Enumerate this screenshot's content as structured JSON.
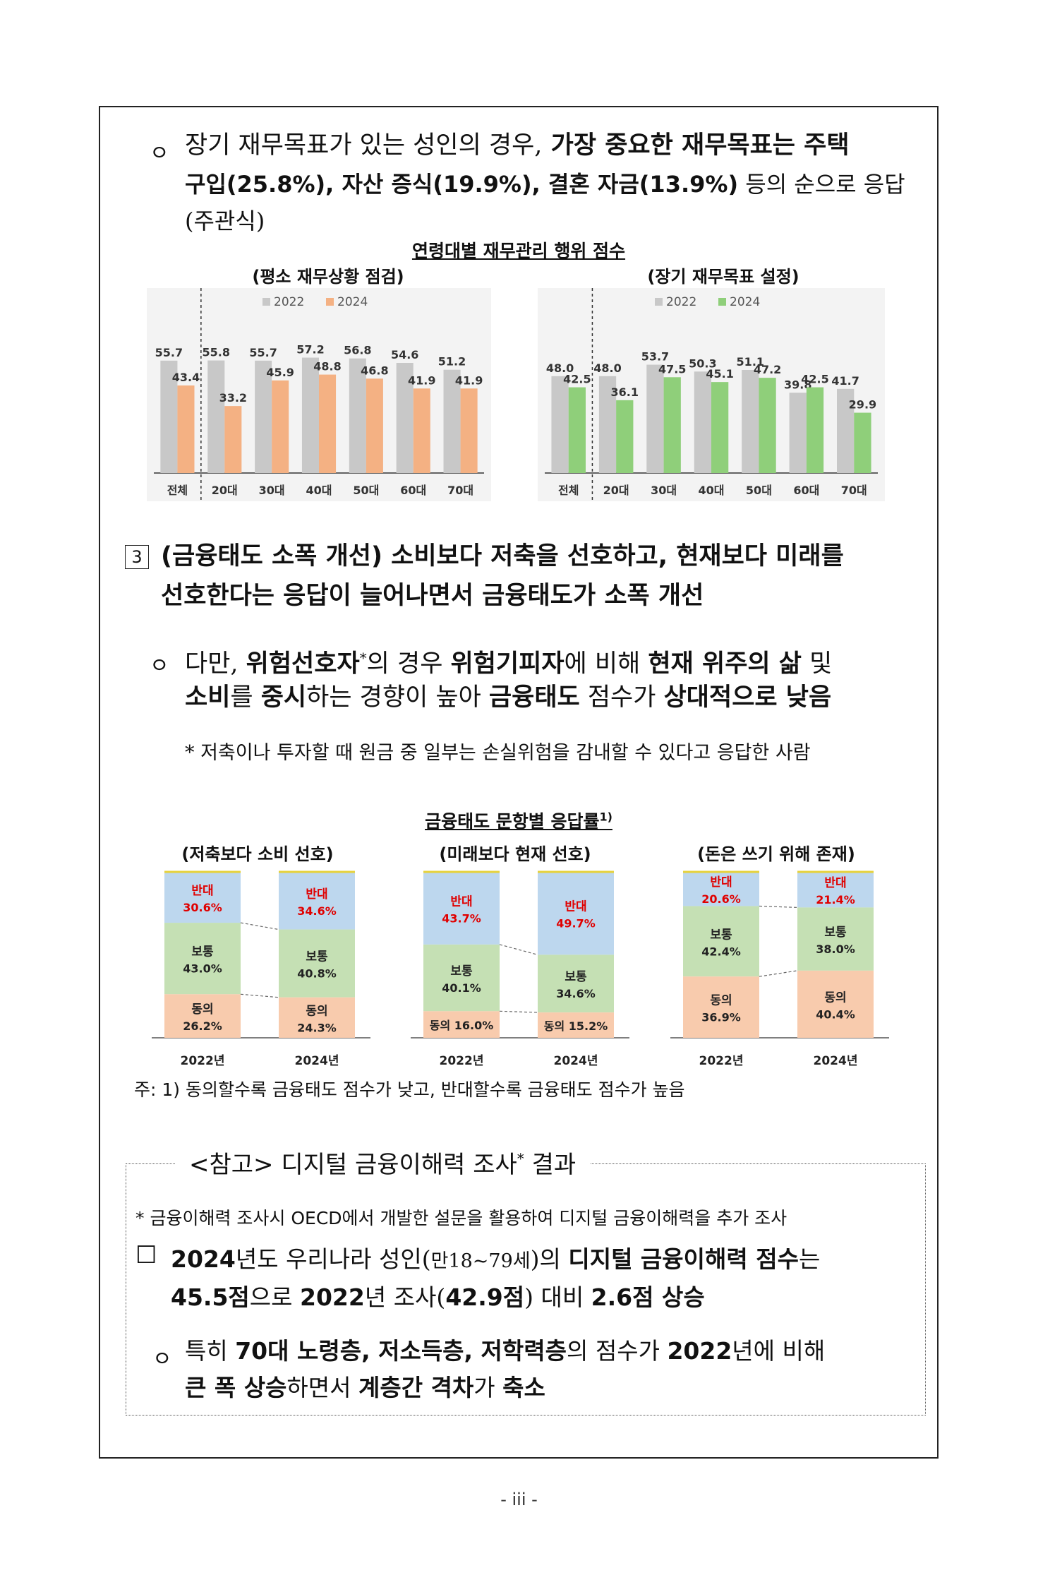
{
  "para1": {
    "bullet": "ㅇ",
    "line1_plain": "장기 재무목표가 있는 성인의 경우,",
    "line1_bold": " 가장 중요한 재무목표는 주택",
    "line2_bold_a": "구입(25.8%), 자산 증식(19.9%), 결혼 자금(13.9%)",
    "line2_plain": " 등의 순으로 응답(주관식)"
  },
  "chart_group1": {
    "title": "연령대별 재무관리 행위 점수",
    "chart_data": [
      {
        "type": "bar",
        "title": "(평소 재무상황 점검)",
        "categories": [
          "전체",
          "20대",
          "30대",
          "40대",
          "50대",
          "60대",
          "70대"
        ],
        "series": [
          {
            "name": "2022",
            "values": [
              55.7,
              55.8,
              55.7,
              57.2,
              56.8,
              54.6,
              51.2
            ]
          },
          {
            "name": "2024",
            "values": [
              43.4,
              33.2,
              45.9,
              48.8,
              46.8,
              41.9,
              41.9
            ]
          }
        ],
        "ylim": [
          0,
          70
        ],
        "legend": "top",
        "colors": {
          "2022": "#c8c8c8",
          "2024": "#f4b183"
        }
      },
      {
        "type": "bar",
        "title": "(장기 재무목표 설정)",
        "categories": [
          "전체",
          "20대",
          "30대",
          "40대",
          "50대",
          "60대",
          "70대"
        ],
        "series": [
          {
            "name": "2022",
            "values": [
              48.0,
              48.0,
              53.7,
              50.3,
              51.1,
              39.8,
              41.7
            ]
          },
          {
            "name": "2024",
            "values": [
              42.5,
              36.1,
              47.5,
              45.1,
              47.2,
              42.5,
              29.9
            ]
          }
        ],
        "ylim": [
          0,
          70
        ],
        "legend": "top",
        "colors": {
          "2022": "#c8c8c8",
          "2024": "#8fcf7a"
        }
      }
    ]
  },
  "section3": {
    "num": "3",
    "line1_bold": "(금융태도 소폭 개선) 소비보다 저축을 선호하고, 현재보다 미래를",
    "line2_bold": "선호한다는 응답이 늘어나면서 금융태도가 소폭 개선"
  },
  "para2": {
    "bullet": "ㅇ",
    "line1_a": "다만, ",
    "line1_b": "위험선호자",
    "line1_star": "*",
    "line1_c": "의 경우 ",
    "line1_d": "위험기피자",
    "line1_e": "에 비해 ",
    "line1_f": "현재 위주의 삶",
    "line1_g": " 및",
    "line2_a": "소비",
    "line2_b": "를 ",
    "line2_c": "중시",
    "line2_d": "하는 경향이 높아 ",
    "line2_e": "금융태도",
    "line2_f": " 점수가 ",
    "line2_g": "상대적으로 낮음",
    "footnote": "* 저축이나 투자할 때 원금 중 일부는 손실위험을 감내할 수 있다고 응답한 사람"
  },
  "chart_group2": {
    "title": "금융태도 문항별 응답률",
    "title_sup": "1)",
    "chart_data": [
      {
        "type": "bar",
        "stacked": true,
        "title": "(저축보다 소비 선호)",
        "categories": [
          "2022년",
          "2024년"
        ],
        "series": [
          {
            "name": "동의",
            "values": [
              26.2,
              24.3
            ]
          },
          {
            "name": "보통",
            "values": [
              43.0,
              40.8
            ]
          },
          {
            "name": "반대",
            "values": [
              30.6,
              34.6
            ]
          }
        ],
        "labels": [
          [
            "동의",
            "26.2%"
          ],
          [
            "보통",
            "43.0%"
          ],
          [
            "반대",
            "30.6%"
          ],
          [
            "동의",
            "24.3%"
          ],
          [
            "보통",
            "40.8%"
          ],
          [
            "반대",
            "34.6%"
          ]
        ]
      },
      {
        "type": "bar",
        "stacked": true,
        "title": "(미래보다 현재 선호)",
        "categories": [
          "2022년",
          "2024년"
        ],
        "series": [
          {
            "name": "동의",
            "values": [
              16.0,
              15.2
            ]
          },
          {
            "name": "보통",
            "values": [
              40.1,
              34.6
            ]
          },
          {
            "name": "반대",
            "values": [
              43.7,
              49.7
            ]
          }
        ]
      },
      {
        "type": "bar",
        "stacked": true,
        "title": "(돈은 쓰기 위해 존재)",
        "categories": [
          "2022년",
          "2024년"
        ],
        "series": [
          {
            "name": "동의",
            "values": [
              36.9,
              40.4
            ]
          },
          {
            "name": "보통",
            "values": [
              42.4,
              38.0
            ]
          },
          {
            "name": "반대",
            "values": [
              20.6,
              21.4
            ]
          }
        ]
      }
    ],
    "colors": {
      "agree": "#f8cbad",
      "neutral": "#c5e0b4",
      "oppose": "#bdd7ee",
      "oppose_text": "#e00000"
    },
    "note": "주: 1) 동의할수록 금융태도 점수가 낮고, 반대할수록 금융태도 점수가 높음"
  },
  "reference": {
    "title_a": "<참고> 디지털 금융이해력 조사",
    "title_star": "*",
    "title_b": " 결과",
    "footnote": "* 금융이해력 조사시 OECD에서 개발한 설문을 활용하여 디지털 금융이해력을 추가 조사",
    "box_mark": "☐",
    "line1_a": "2024",
    "line1_b": "년도 우리나라 성인(",
    "line1_c": "만18~79세",
    "line1_d": ")의 ",
    "line1_e": "디지털 금융이해력 점수",
    "line1_f": "는",
    "line2_a": "45.5점",
    "line2_b": "으로 ",
    "line2_c": "2022",
    "line2_d": "년 조사(",
    "line2_e": "42.9점",
    "line2_f": ") 대비 ",
    "line2_g": "2.6점 상승",
    "sub_bullet": "ㅇ",
    "sub1_a": "특히 ",
    "sub1_b": "70대 노령층, 저소득층, 저학력층",
    "sub1_c": "의 점수가 ",
    "sub1_d": "2022",
    "sub1_e": "년에 비해",
    "sub2_a": "큰 폭 상승",
    "sub2_b": "하면서 ",
    "sub2_c": "계층간 격차",
    "sub2_d": "가 ",
    "sub2_e": "축소"
  },
  "page_number": "- iii -"
}
